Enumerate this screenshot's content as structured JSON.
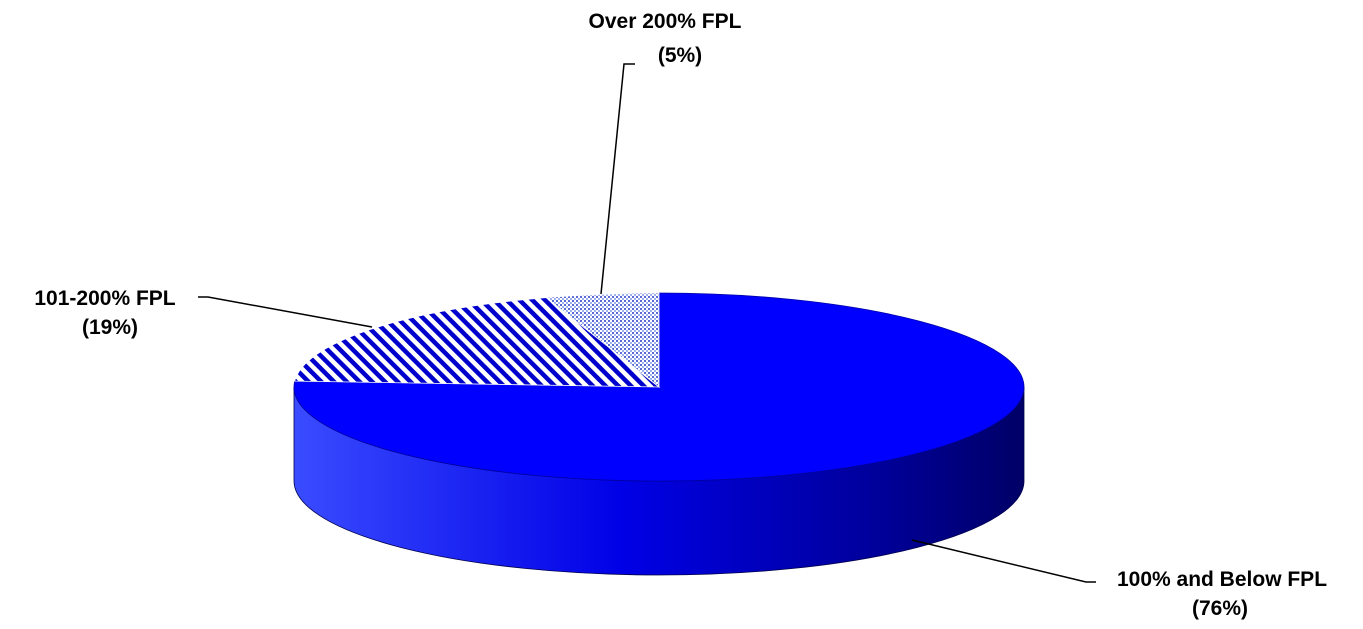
{
  "chart_data": {
    "type": "pie",
    "style": "3d",
    "slices": [
      {
        "label": "100% and Below FPL",
        "value_label": "(76%)",
        "value": 76,
        "color": "#0000ff",
        "fill": "solid"
      },
      {
        "label": "101-200% FPL",
        "value_label": "(19%)",
        "value": 19,
        "color": "#0000cc",
        "fill": "diagonal-stripes"
      },
      {
        "label": "Over 200% FPL",
        "value_label": "(5%)",
        "value": 5,
        "color": "#8a9ae8",
        "fill": "dotted"
      }
    ]
  }
}
